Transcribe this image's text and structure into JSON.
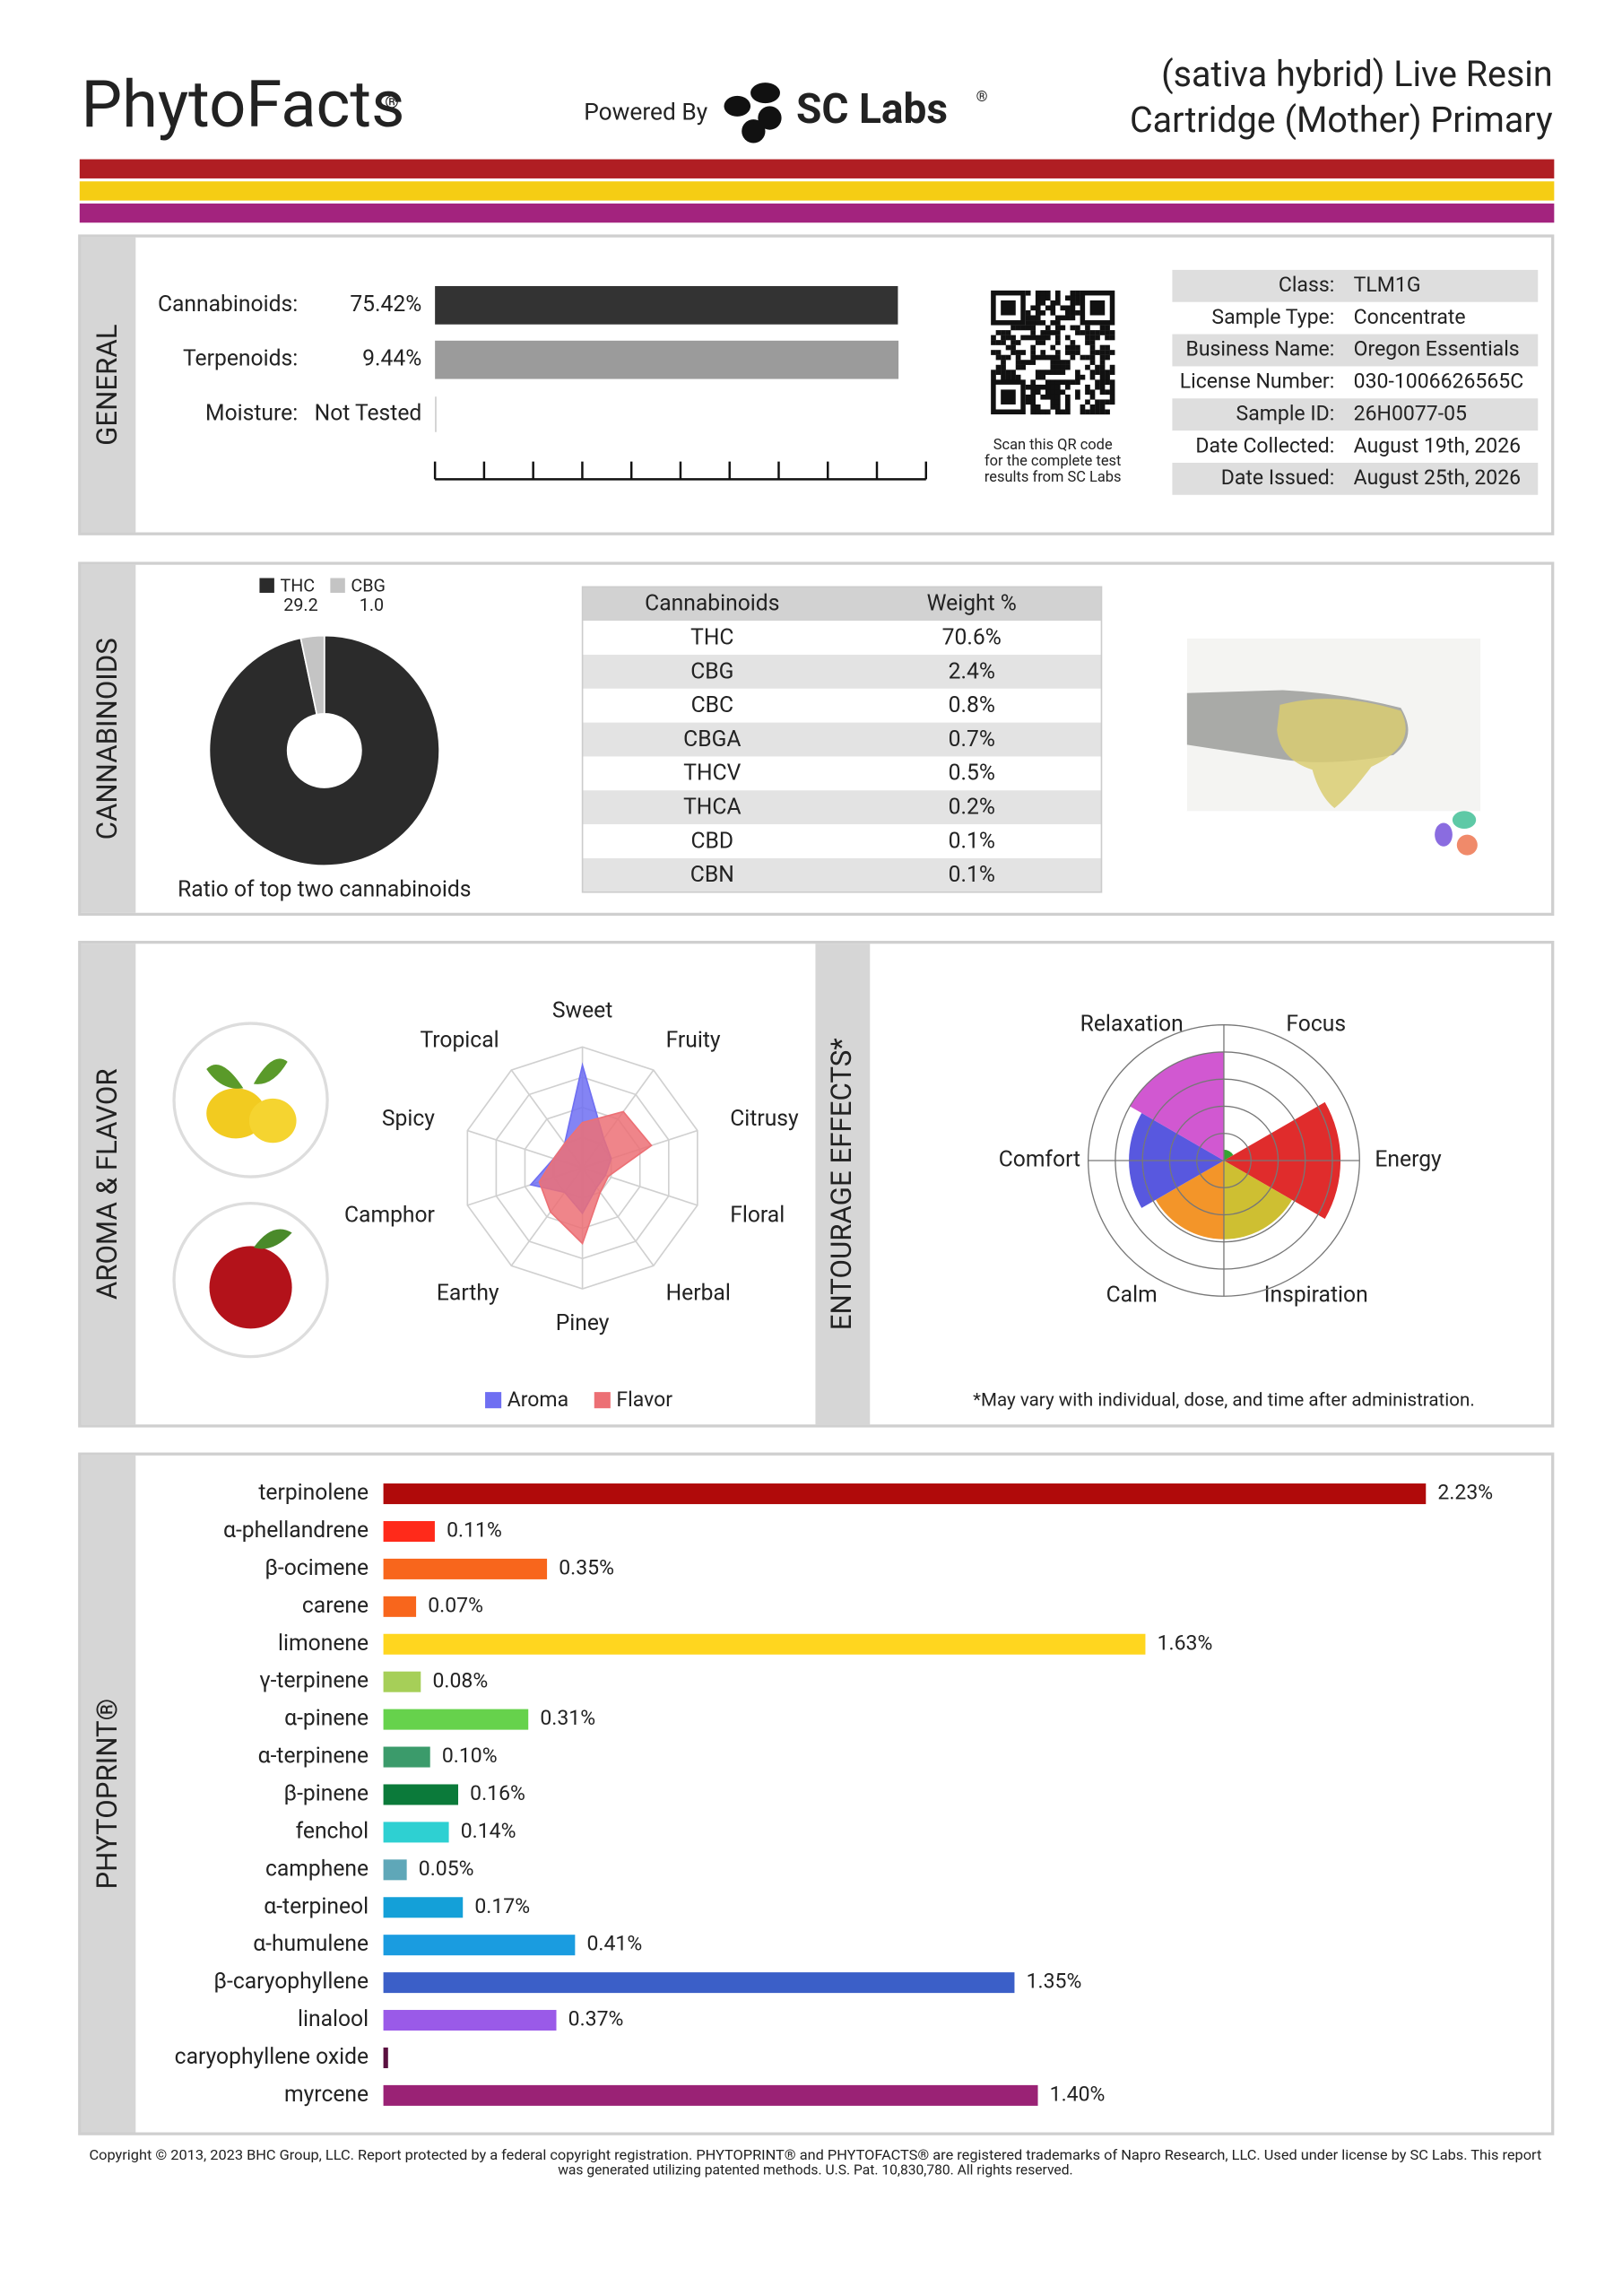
{
  "header": {
    "brand": "PhytoFacts",
    "brand_mark": "®",
    "powered_by": "Powered By",
    "lab": "SC Labs",
    "lab_mark": "®",
    "product_lines": [
      "(sativa hybrid) Live Resin",
      "Cartridge (Mother) Primary"
    ]
  },
  "general": {
    "title": "GENERAL",
    "potency": [
      {
        "label": "Cannabinoids:",
        "value": 75.42,
        "value_label": "75.42%",
        "xlim": [
          0,
          80
        ],
        "color": "#333333"
      },
      {
        "label": "Terpenoids:",
        "value": 9.44,
        "value_label": "9.44%",
        "xlim": [
          0,
          10
        ],
        "color": "#9b9b9b"
      },
      {
        "label": "Moisture:",
        "value_label": "Not Tested"
      }
    ],
    "qr_caption": [
      "Scan this QR code",
      "for the complete test",
      "results from SC Labs"
    ],
    "info": [
      [
        "Class:",
        "TLM1G"
      ],
      [
        "Sample Type:",
        "Concentrate"
      ],
      [
        "Business Name:",
        "Oregon Essentials"
      ],
      [
        "License Number:",
        "030-1006626565C"
      ],
      [
        "Sample ID:",
        "26H0077-05"
      ],
      [
        "Date Collected:",
        "August 19th, 2026"
      ],
      [
        "Date Issued:",
        "August 25th, 2026"
      ]
    ]
  },
  "cannabinoids": {
    "title": "CANNABINOIDS",
    "ratio_chart": {
      "type": "pie",
      "categories": [
        "THC",
        "CBG"
      ],
      "values": [
        29.2,
        1.0
      ],
      "value_labels": [
        "29.2",
        "1.0"
      ],
      "colors": [
        "#2b2b2b",
        "#c4c4c4"
      ],
      "caption": "Ratio of top two cannabinoids"
    },
    "table": {
      "columns": [
        "Cannabinoids",
        "Weight %"
      ],
      "rows": [
        [
          "THC",
          "70.6%"
        ],
        [
          "CBG",
          "2.4%"
        ],
        [
          "CBC",
          "0.8%"
        ],
        [
          "CBGA",
          "0.7%"
        ],
        [
          "THCV",
          "0.5%"
        ],
        [
          "THCA",
          "0.2%"
        ],
        [
          "CBD",
          "0.1%"
        ],
        [
          "CBN",
          "0.1%"
        ]
      ]
    }
  },
  "aroma": {
    "title": "AROMA & FLAVOR",
    "chart": {
      "type": "radar",
      "axes": [
        "Sweet",
        "Fruity",
        "Citrusy",
        "Floral",
        "Herbal",
        "Piney",
        "Earthy",
        "Camphor",
        "Spicy",
        "Tropical"
      ],
      "rlim": [
        0,
        4
      ],
      "series": [
        {
          "name": "Aroma",
          "color": "#6f6ff2",
          "values": [
            3.4,
            1.2,
            1.0,
            0.8,
            0.8,
            1.5,
            1.0,
            1.8,
            1.0,
            1.0
          ]
        },
        {
          "name": "Flavor",
          "color": "#ec7075",
          "values": [
            1.5,
            2.3,
            2.4,
            0.9,
            1.0,
            2.5,
            1.8,
            1.5,
            1.0,
            1.0
          ]
        }
      ]
    }
  },
  "effects": {
    "title": "ENTOURAGE EFFECTS*",
    "chart": {
      "type": "polar-area",
      "categories": [
        "Focus",
        "Energy",
        "Inspiration",
        "Calm",
        "Comfort",
        "Relaxation"
      ],
      "values": [
        0.4,
        4.3,
        2.9,
        2.9,
        3.5,
        4.0
      ],
      "rlim": [
        0,
        5
      ],
      "colors": [
        "#1e9a1e",
        "#dd1515",
        "#c9b81c",
        "#f28a12",
        "#4646dc",
        "#cc46cc"
      ]
    },
    "note": "*May vary with individual, dose, and time after administration."
  },
  "phytoprint": {
    "title": "PHYTOPRINT®",
    "chart": {
      "type": "bar",
      "orientation": "horizontal",
      "xlim": [
        0,
        2.23
      ],
      "categories": [
        "terpinolene",
        "α-phellandrene",
        "β-ocimene",
        "carene",
        "limonene",
        "γ-terpinene",
        "α-pinene",
        "α-terpinene",
        "β-pinene",
        "fenchol",
        "camphene",
        "α-terpineol",
        "α-humulene",
        "β-caryophyllene",
        "linalool",
        "caryophyllene oxide",
        "myrcene"
      ],
      "values": [
        2.23,
        0.11,
        0.35,
        0.07,
        1.63,
        0.08,
        0.31,
        0.1,
        0.16,
        0.14,
        0.05,
        0.17,
        0.41,
        1.35,
        0.37,
        0.01,
        1.4
      ],
      "value_labels": [
        "2.23%",
        "0.11%",
        "0.35%",
        "0.07%",
        "1.63%",
        "0.08%",
        "0.31%",
        "0.10%",
        "0.16%",
        "0.14%",
        "0.05%",
        "0.17%",
        "0.41%",
        "1.35%",
        "0.37%",
        null,
        "1.40%"
      ],
      "colors": [
        "#b00a0a",
        "#ff2a1a",
        "#f8661c",
        "#f8661c",
        "#ffd61f",
        "#a6cf58",
        "#66d24c",
        "#3b9b6b",
        "#0b7a3a",
        "#2ed0d2",
        "#5fa7b8",
        "#14a0d8",
        "#1a9ce0",
        "#3b5fc8",
        "#9a5ae8",
        "#5a1040",
        "#9a2275"
      ],
      "label_colors": [
        "#a00808",
        "#e0200f",
        "#d85a10",
        "#c66a10",
        "#b39800",
        "#6a9a20",
        "#3a9a20",
        "#1f8a2a",
        "#0a7a3a",
        "#1a8a8a",
        "#2a8aa0",
        "#1a7ab8",
        "#1a7ac8",
        "#2a4ab8",
        "#8a4ad8",
        "#4a0a30",
        "#8a1a65"
      ]
    }
  },
  "footer": [
    "Copyright © 2013, 2023 BHC Group, LLC. Report protected by a federal copyright registration. PHYTOPRINT® and PHYTOFACTS® are registered trademarks of Napro Research, LLC. Used under license by SC Labs. This report",
    "was generated utilizing patented methods. U.S. Pat. 10,830,780. All rights reserved."
  ]
}
